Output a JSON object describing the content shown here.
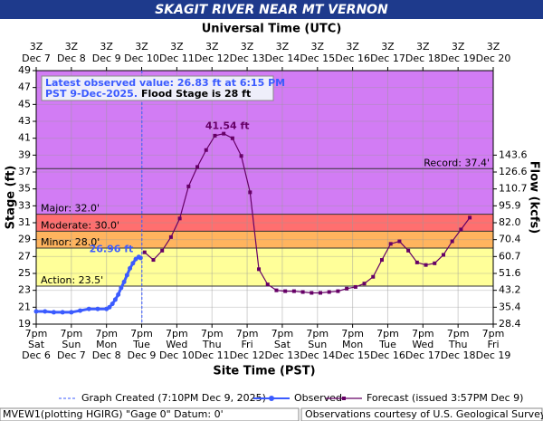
{
  "chart_data": {
    "type": "hydrograph",
    "title": "SKAGIT RIVER NEAR MT VERNON",
    "top_axis_label": "Universal Time (UTC)",
    "x_label": "Site Time (PST)",
    "y_label": "Stage (ft)",
    "y2_label": "Flow (kcfs)",
    "xlim": [
      "Dec 6 7pm",
      "Dec 19 7pm"
    ],
    "ylim": [
      19,
      49
    ],
    "yticks": [
      19,
      21,
      23,
      25,
      27,
      29,
      31,
      33,
      35,
      37,
      39,
      41,
      43,
      45,
      47,
      49
    ],
    "grid": true,
    "xticks": [
      {
        "value": "Dec 6 7pm",
        "label": [
          "7pm",
          "Sat",
          "Dec 6"
        ]
      },
      {
        "value": "Dec 7 7pm",
        "label": [
          "7pm",
          "Sun",
          "Dec 7"
        ]
      },
      {
        "value": "Dec 8 7pm",
        "label": [
          "7pm",
          "Mon",
          "Dec 8"
        ]
      },
      {
        "value": "Dec 9 7pm",
        "label": [
          "7pm",
          "Tue",
          "Dec 9"
        ]
      },
      {
        "value": "Dec 10 7pm",
        "label": [
          "7pm",
          "Wed",
          "Dec 10"
        ]
      },
      {
        "value": "Dec 11 7pm",
        "label": [
          "7pm",
          "Thu",
          "Dec 11"
        ]
      },
      {
        "value": "Dec 12 7pm",
        "label": [
          "7pm",
          "Fri",
          "Dec 12"
        ]
      },
      {
        "value": "Dec 13 7pm",
        "label": [
          "7pm",
          "Sat",
          "Dec 13"
        ]
      },
      {
        "value": "Dec 14 7pm",
        "label": [
          "7pm",
          "Sun",
          "Dec 14"
        ]
      },
      {
        "value": "Dec 15 7pm",
        "label": [
          "7pm",
          "Mon",
          "Dec 15"
        ]
      },
      {
        "value": "Dec 16 7pm",
        "label": [
          "7pm",
          "Tue",
          "Dec 16"
        ]
      },
      {
        "value": "Dec 17 7pm",
        "label": [
          "7pm",
          "Wed",
          "Dec 17"
        ]
      },
      {
        "value": "Dec 18 7pm",
        "label": [
          "7pm",
          "Thu",
          "Dec 18"
        ]
      },
      {
        "value": "Dec 19 7pm",
        "label": [
          "7pm",
          "Fri",
          "Dec 19"
        ]
      }
    ],
    "x2ticks": [
      {
        "value": "Dec 6 7pm",
        "label": [
          "3Z",
          "Dec 7"
        ]
      },
      {
        "value": "Dec 7 7pm",
        "label": [
          "3Z",
          "Dec 8"
        ]
      },
      {
        "value": "Dec 8 7pm",
        "label": [
          "3Z",
          "Dec 9"
        ]
      },
      {
        "value": "Dec 9 7pm",
        "label": [
          "3Z",
          "Dec 10"
        ]
      },
      {
        "value": "Dec 10 7pm",
        "label": [
          "3Z",
          "Dec 11"
        ]
      },
      {
        "value": "Dec 11 7pm",
        "label": [
          "3Z",
          "Dec 12"
        ]
      },
      {
        "value": "Dec 12 7pm",
        "label": [
          "3Z",
          "Dec 13"
        ]
      },
      {
        "value": "Dec 13 7pm",
        "label": [
          "3Z",
          "Dec 14"
        ]
      },
      {
        "value": "Dec 14 7pm",
        "label": [
          "3Z",
          "Dec 15"
        ]
      },
      {
        "value": "Dec 15 7pm",
        "label": [
          "3Z",
          "Dec 16"
        ]
      },
      {
        "value": "Dec 16 7pm",
        "label": [
          "3Z",
          "Dec 17"
        ]
      },
      {
        "value": "Dec 17 7pm",
        "label": [
          "3Z",
          "Dec 18"
        ]
      },
      {
        "value": "Dec 18 7pm",
        "label": [
          "3Z",
          "Dec 19"
        ]
      },
      {
        "value": "Dec 19 7pm",
        "label": [
          "3Z",
          "Dec 20"
        ]
      }
    ],
    "flow_ticks": [
      {
        "stage": 19,
        "flow": "28.4"
      },
      {
        "stage": 21,
        "flow": "35.4"
      },
      {
        "stage": 23,
        "flow": "43.2"
      },
      {
        "stage": 25,
        "flow": "51.6"
      },
      {
        "stage": 27,
        "flow": "60.7"
      },
      {
        "stage": 29,
        "flow": "70.4"
      },
      {
        "stage": 31,
        "flow": "82.0"
      },
      {
        "stage": 33,
        "flow": "95.9"
      },
      {
        "stage": 35,
        "flow": "110.7"
      },
      {
        "stage": 37,
        "flow": "126.6"
      },
      {
        "stage": 39,
        "flow": "143.6"
      }
    ],
    "flood_categories": [
      {
        "label": "Action: 23.5'",
        "value": 23.5,
        "color": "#ffff99"
      },
      {
        "label": "Minor: 28.0'",
        "value": 28.0,
        "color": "#ffb45e"
      },
      {
        "label": "Moderate: 30.0'",
        "value": 30.0,
        "color": "#ff6f6f"
      },
      {
        "label": "Major: 32.0'",
        "value": 32.0,
        "color": "#d27cf4"
      },
      {
        "label": "Record: 37.4'",
        "value": 37.4
      }
    ],
    "series": [
      {
        "name": "Observed",
        "color": "#3b5bff",
        "x": [
          "Dec 6 7pm",
          "Dec 7 1am",
          "Dec 7 7am",
          "Dec 7 1pm",
          "Dec 7 7pm",
          "Dec 8 1am",
          "Dec 8 7am",
          "Dec 8 1pm",
          "Dec 8 7pm",
          "Dec 8 9pm",
          "Dec 8 11pm",
          "Dec 9 1am",
          "Dec 9 3am",
          "Dec 9 5am",
          "Dec 9 7am",
          "Dec 9 9am",
          "Dec 9 11am",
          "Dec 9 1pm",
          "Dec 9 3pm",
          "Dec 9 5pm",
          "Dec 9 6:15pm"
        ],
        "values": [
          20.5,
          20.5,
          20.4,
          20.4,
          20.4,
          20.6,
          20.8,
          20.8,
          20.8,
          21.0,
          21.4,
          21.9,
          22.5,
          23.3,
          24.0,
          24.8,
          25.6,
          26.2,
          26.7,
          26.96,
          26.83
        ]
      },
      {
        "name": "Forecast (issued 3:57PM Dec 9)",
        "color": "#660066",
        "x": [
          "Dec 9 9pm",
          "Dec 10 3am",
          "Dec 10 9am",
          "Dec 10 3pm",
          "Dec 10 9pm",
          "Dec 11 3am",
          "Dec 11 9am",
          "Dec 11 3pm",
          "Dec 11 9pm",
          "Dec 12 3am",
          "Dec 12 9am",
          "Dec 12 3pm",
          "Dec 12 9pm",
          "Dec 13 3am",
          "Dec 13 9am",
          "Dec 13 3pm",
          "Dec 13 9pm",
          "Dec 14 3am",
          "Dec 14 9am",
          "Dec 14 3pm",
          "Dec 14 9pm",
          "Dec 15 3am",
          "Dec 15 9am",
          "Dec 15 3pm",
          "Dec 15 9pm",
          "Dec 16 3am",
          "Dec 16 9am",
          "Dec 16 3pm",
          "Dec 16 9pm",
          "Dec 17 3am",
          "Dec 17 9am",
          "Dec 17 3pm",
          "Dec 17 9pm",
          "Dec 18 3am",
          "Dec 18 9am",
          "Dec 18 3pm",
          "Dec 18 9pm",
          "Dec 19 3am"
        ],
        "values": [
          27.5,
          26.6,
          27.7,
          29.3,
          31.5,
          35.3,
          37.6,
          39.6,
          41.3,
          41.54,
          41.0,
          38.9,
          34.6,
          25.5,
          23.7,
          23.0,
          22.9,
          22.9,
          22.8,
          22.7,
          22.7,
          22.8,
          22.9,
          23.2,
          23.4,
          23.8,
          24.6,
          26.6,
          28.5,
          28.8,
          27.7,
          26.3,
          26.0,
          26.2,
          27.2,
          28.8,
          30.2,
          31.6
        ]
      }
    ],
    "annotations": {
      "observed_max": "26.96 ft",
      "forecast_peak": "41.54 ft"
    },
    "info_box": {
      "lines": [
        "Latest observed value: 26.83 ft at 6:15 PM",
        "PST 9-Dec-2025."
      ],
      "flood_stage": "Flood Stage is 28 ft"
    },
    "graph_created": {
      "label": "Graph Created (7:10PM Dec 9, 2025)",
      "x": "Dec 9 7:10pm"
    },
    "footer": {
      "left": "MVEW1(plotting HGIRG) \"Gage 0\" Datum: 0'",
      "right": "Observations courtesy of U.S. Geological Survey"
    }
  }
}
